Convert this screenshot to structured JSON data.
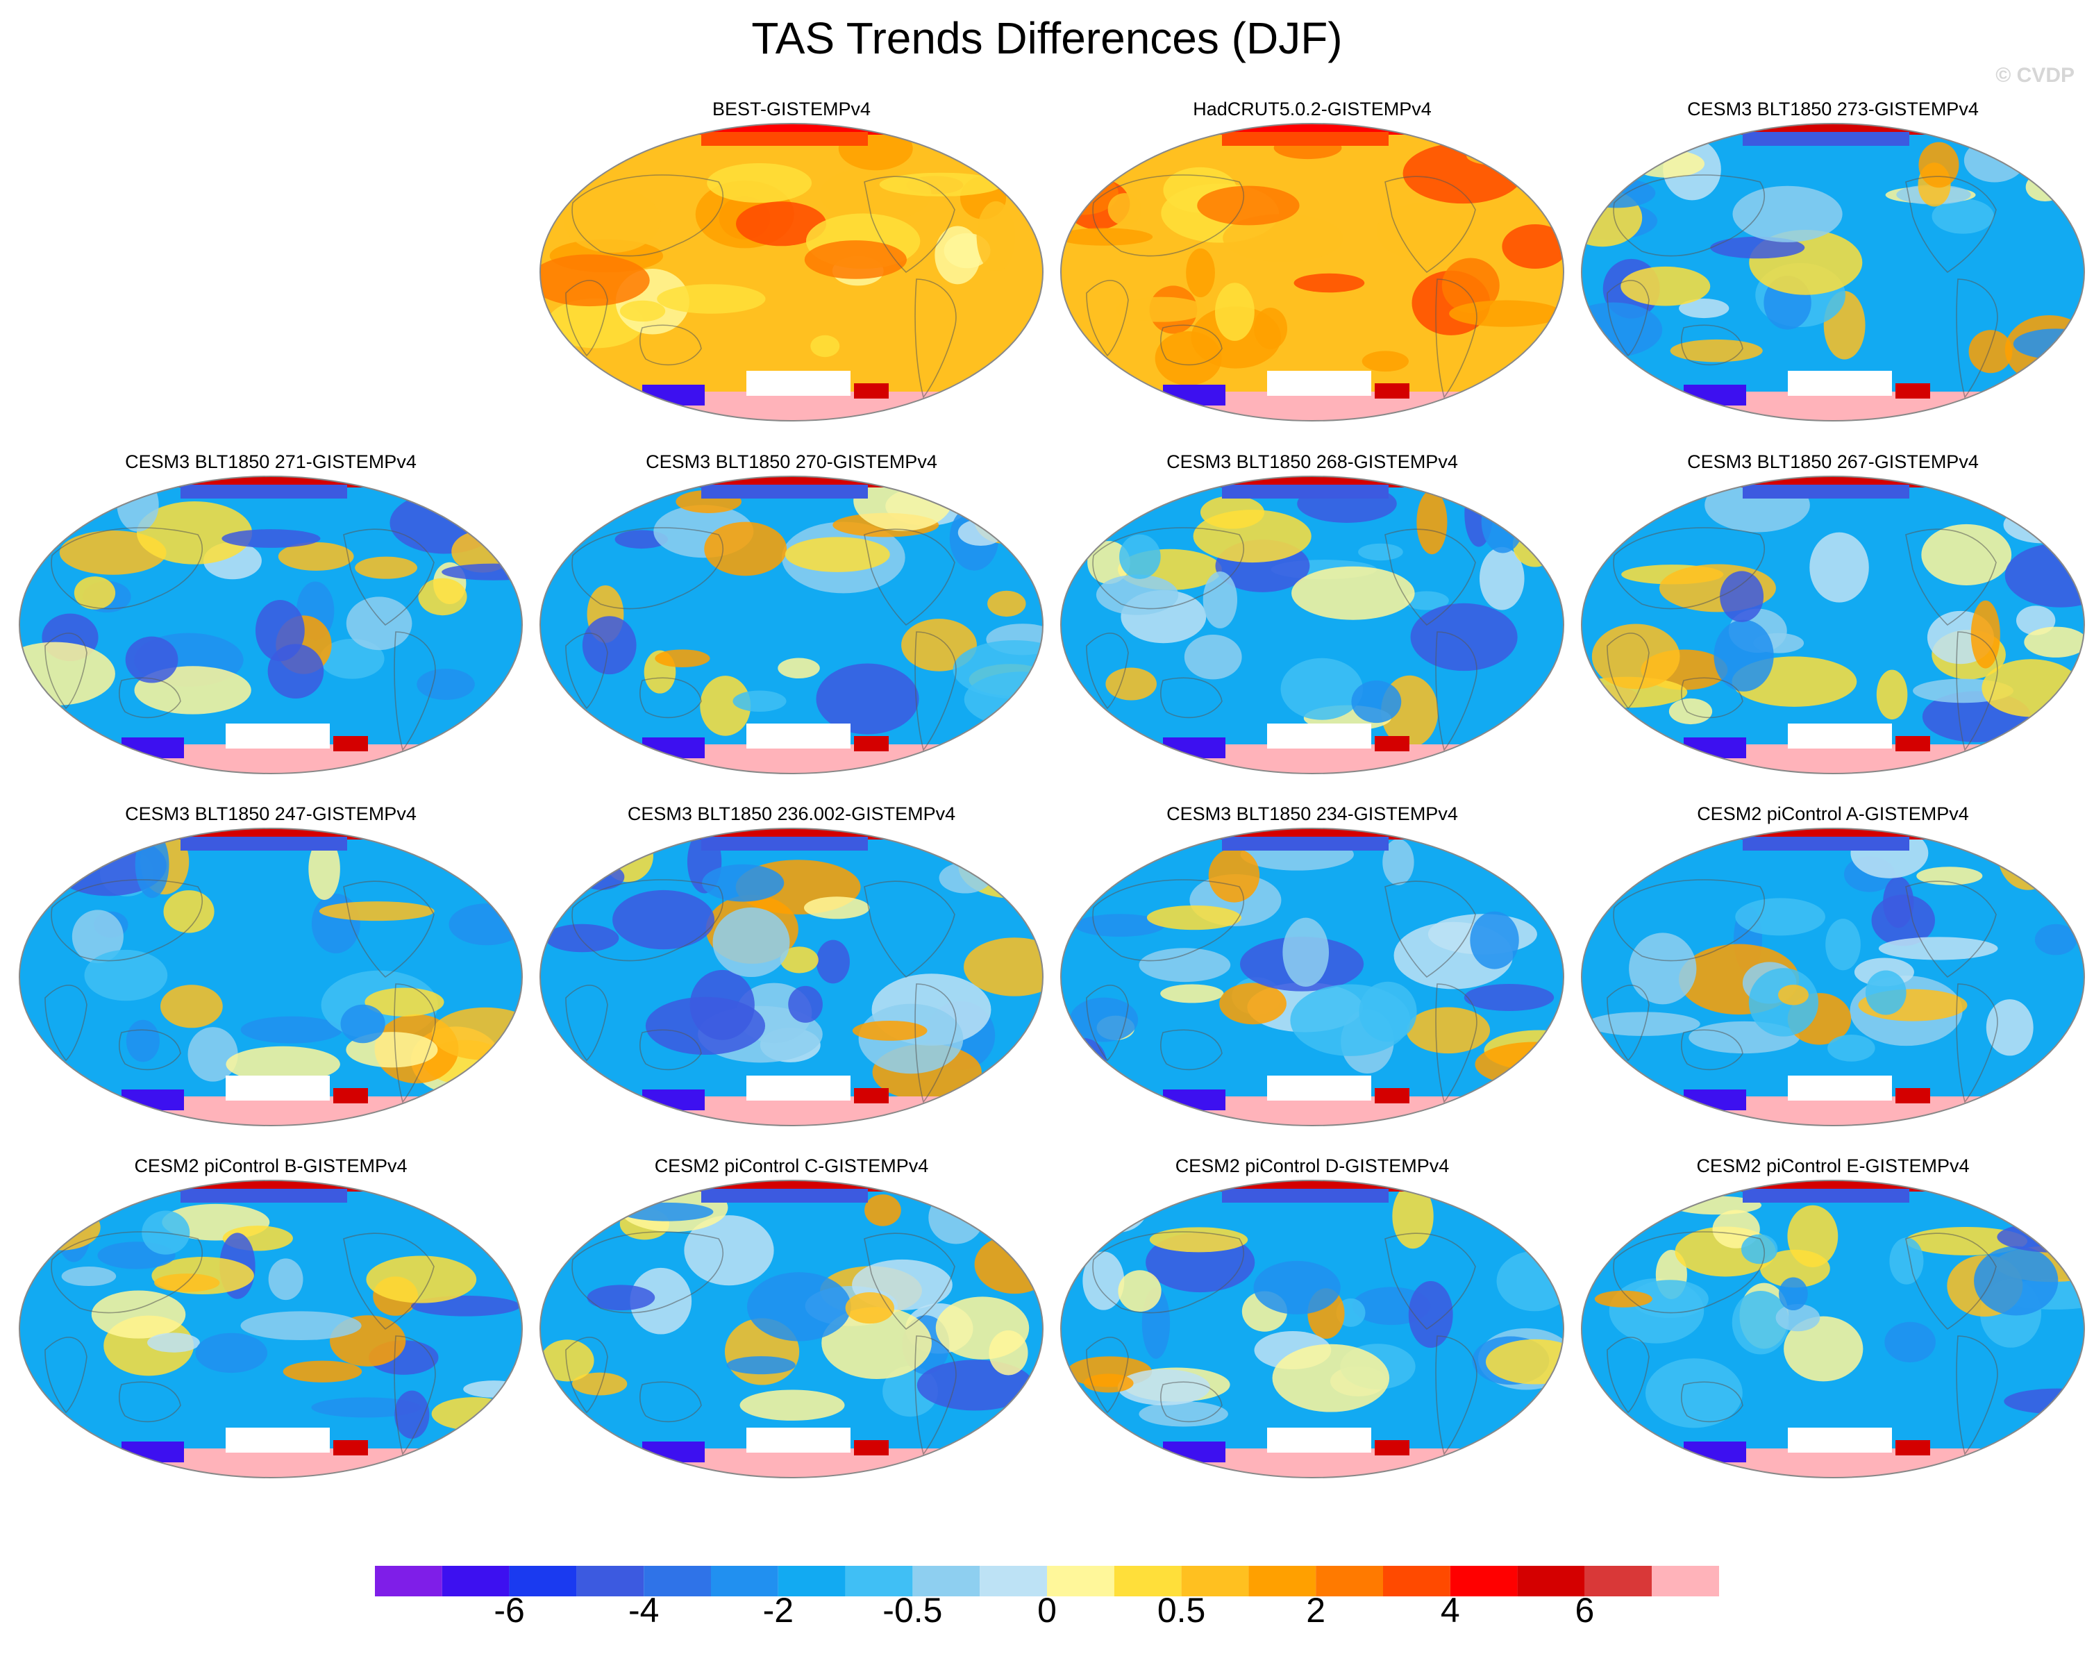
{
  "title": "TAS Trends Differences (DJF)",
  "watermark": "© CVDP",
  "panels": [
    {
      "title": "BEST-GISTEMPv4",
      "tone": "warm"
    },
    {
      "title": "HadCRUT5.0.2-GISTEMPv4",
      "tone": "warm"
    },
    {
      "title": "CESM3 BLT1850 273-GISTEMPv4",
      "tone": "cool"
    },
    {
      "title": "CESM3 BLT1850 271-GISTEMPv4",
      "tone": "cool"
    },
    {
      "title": "CESM3 BLT1850 270-GISTEMPv4",
      "tone": "cool"
    },
    {
      "title": "CESM3 BLT1850 268-GISTEMPv4",
      "tone": "cool"
    },
    {
      "title": "CESM3 BLT1850 267-GISTEMPv4",
      "tone": "cool"
    },
    {
      "title": "CESM3 BLT1850 247-GISTEMPv4",
      "tone": "cool"
    },
    {
      "title": "CESM3 BLT1850 236.002-GISTEMPv4",
      "tone": "cool"
    },
    {
      "title": "CESM3 BLT1850 234-GISTEMPv4",
      "tone": "cool"
    },
    {
      "title": "CESM2 piControl A-GISTEMPv4",
      "tone": "cool"
    },
    {
      "title": "CESM2 piControl B-GISTEMPv4",
      "tone": "cool"
    },
    {
      "title": "CESM2 piControl C-GISTEMPv4",
      "tone": "cool"
    },
    {
      "title": "CESM2 piControl D-GISTEMPv4",
      "tone": "cool"
    },
    {
      "title": "CESM2 piControl E-GISTEMPv4",
      "tone": "cool"
    }
  ],
  "colorbar": {
    "colors": [
      "#7f1ee8",
      "#3d10f0",
      "#1a3af0",
      "#3c5ae0",
      "#2f73e8",
      "#2190f0",
      "#12aaf2",
      "#40bff5",
      "#8ecff0",
      "#bde2f5",
      "#fff79a",
      "#ffdf3a",
      "#ffc020",
      "#ffa000",
      "#ff7a00",
      "#ff4a00",
      "#ff0000",
      "#d40000",
      "#d93838",
      "#ffb3ba"
    ],
    "tick_labels": [
      "-6",
      "-4",
      "-2",
      "-0.5",
      "0",
      "0.5",
      "2",
      "4",
      "6"
    ]
  }
}
